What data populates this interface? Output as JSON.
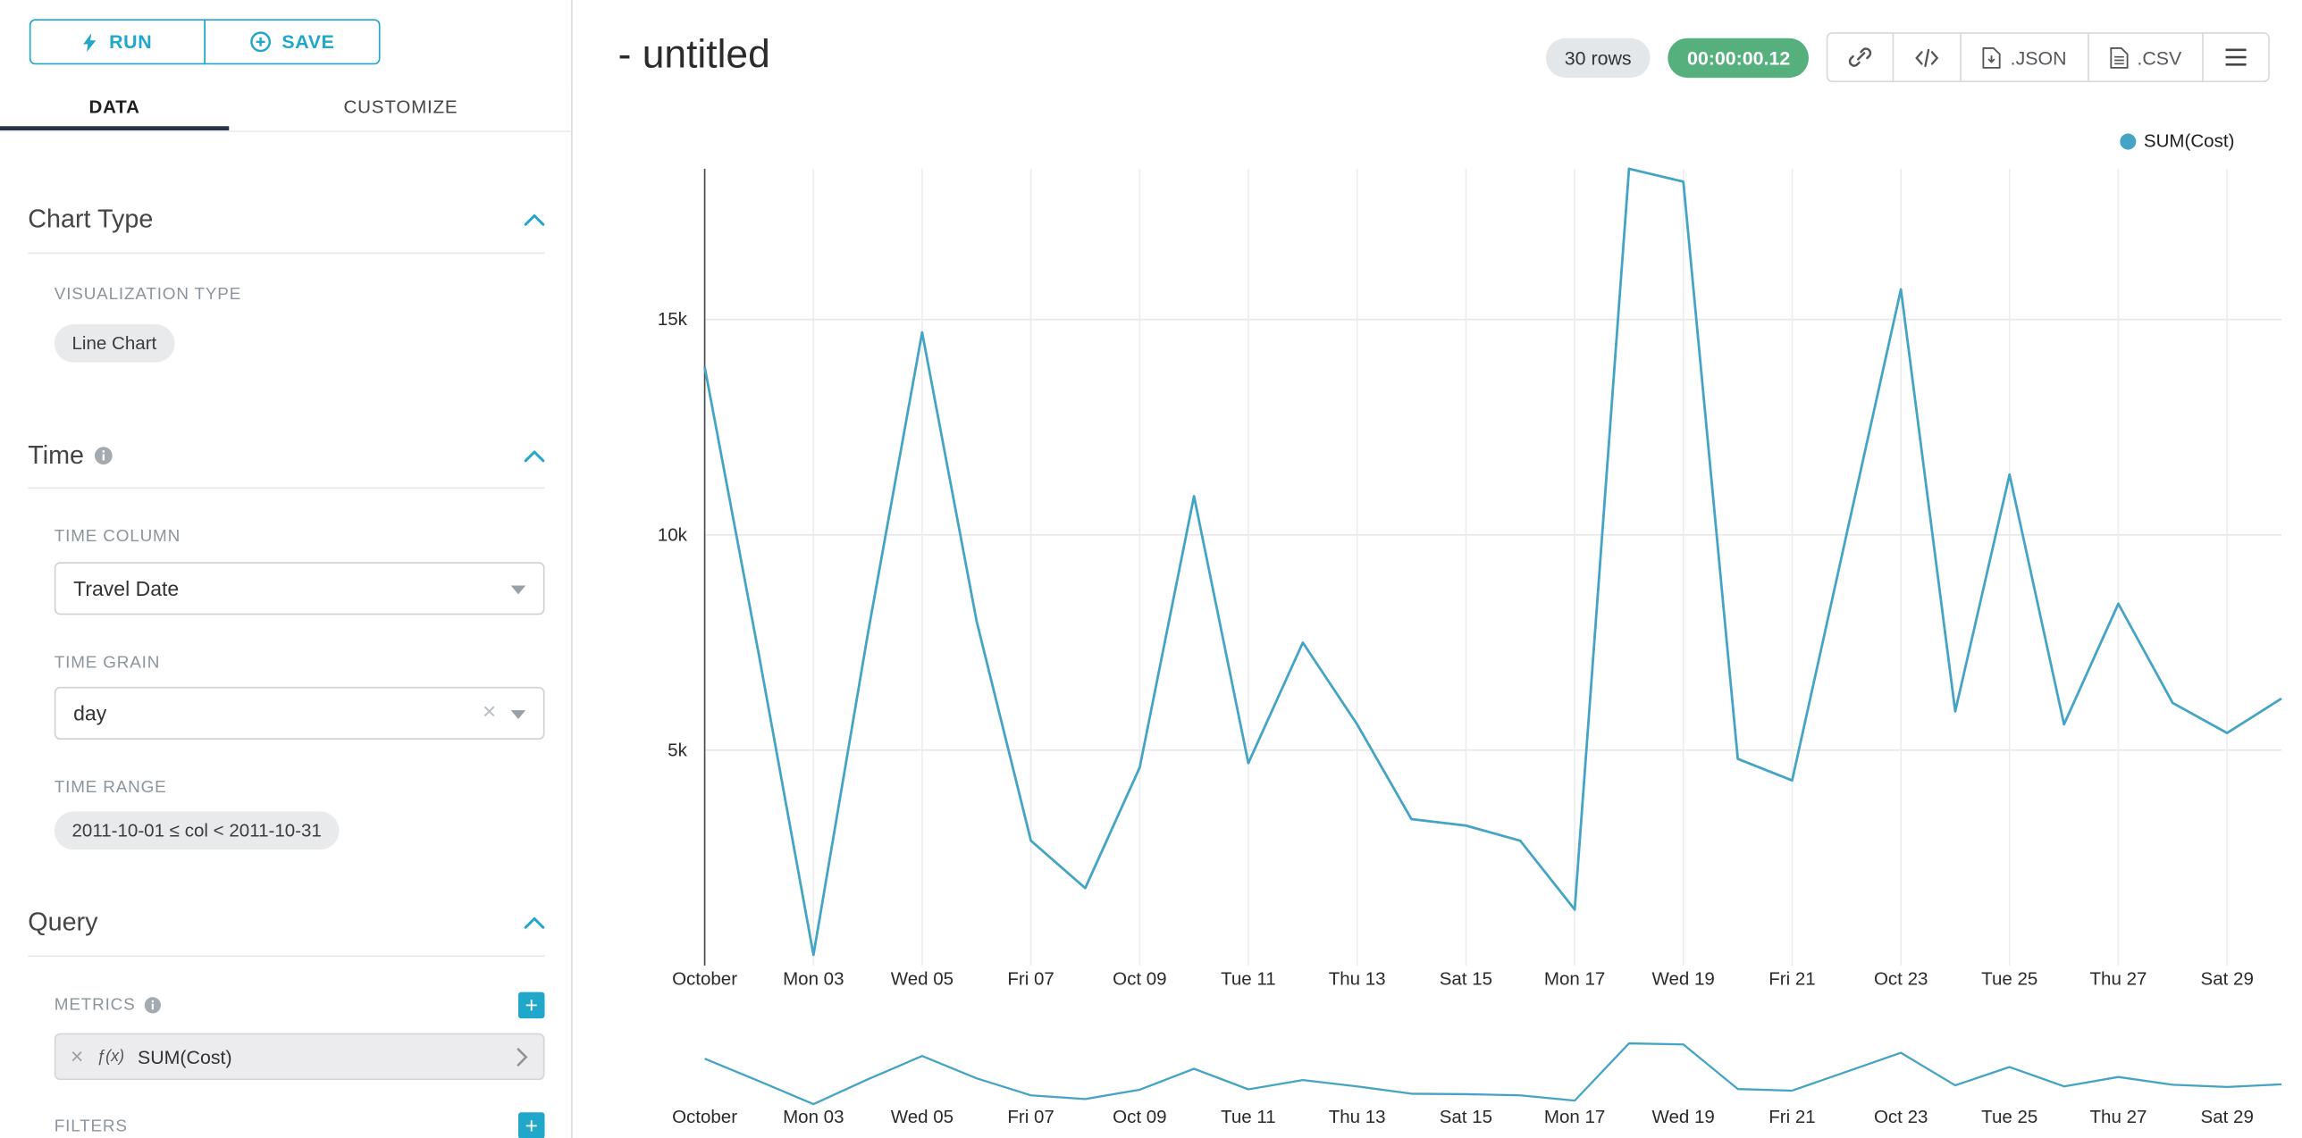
{
  "accent_color": "#20a7c9",
  "sidebar": {
    "run_button": {
      "label": "RUN",
      "icon": "lightning-bolt-icon"
    },
    "save_button": {
      "label": "SAVE",
      "icon": "plus-circle-icon"
    },
    "tabs": [
      {
        "label": "DATA",
        "active": true
      },
      {
        "label": "CUSTOMIZE",
        "active": false
      }
    ],
    "chart_type_section": {
      "title": "Chart Type",
      "visualization_type_label": "VISUALIZATION TYPE",
      "visualization_type_value": "Line Chart"
    },
    "time_section": {
      "title": "Time",
      "time_column_label": "TIME COLUMN",
      "time_column_value": "Travel Date",
      "time_grain_label": "TIME GRAIN",
      "time_grain_value": "day",
      "time_range_label": "TIME RANGE",
      "time_range_value": "2011-10-01 ≤ col < 2011-10-31"
    },
    "query_section": {
      "title": "Query",
      "metrics_label": "METRICS",
      "metric_function_badge": "ƒ(x)",
      "metric_value": "SUM(Cost)",
      "filters_label": "FILTERS"
    }
  },
  "header": {
    "title": "- untitled",
    "rows_badge": "30 rows",
    "timer_badge": "00:00:00.12",
    "timer_color": "#56b07e",
    "rows_badge_color": "#e4e7e9",
    "export_json_label": ".JSON",
    "export_csv_label": ".CSV",
    "icon_buttons": [
      "link-icon",
      "code-icon",
      "export-json",
      "export-csv",
      "menu-icon"
    ]
  },
  "legend": {
    "label": "SUM(Cost)",
    "color": "#45a4c5"
  },
  "chart_data": {
    "type": "line",
    "title": "",
    "xlabel": "",
    "ylabel": "",
    "legend_position": "top-right",
    "grid": true,
    "line_color": "#45a4c5",
    "x": [
      "2011-10-01",
      "2011-10-02",
      "2011-10-03",
      "2011-10-04",
      "2011-10-05",
      "2011-10-06",
      "2011-10-07",
      "2011-10-08",
      "2011-10-09",
      "2011-10-10",
      "2011-10-11",
      "2011-10-12",
      "2011-10-13",
      "2011-10-14",
      "2011-10-15",
      "2011-10-16",
      "2011-10-17",
      "2011-10-18",
      "2011-10-19",
      "2011-10-20",
      "2011-10-21",
      "2011-10-22",
      "2011-10-23",
      "2011-10-24",
      "2011-10-25",
      "2011-10-26",
      "2011-10-27",
      "2011-10-28",
      "2011-10-29",
      "2011-10-30"
    ],
    "series": [
      {
        "name": "SUM(Cost)",
        "values": [
          13900,
          7200,
          250,
          7700,
          14700,
          8000,
          2900,
          1800,
          4600,
          10900,
          4700,
          7500,
          5600,
          3400,
          3250,
          2900,
          1300,
          18500,
          18200,
          4800,
          4300,
          10000,
          15700,
          5900,
          11400,
          5600,
          8400,
          6100,
          5400,
          6200
        ]
      }
    ],
    "x_tick_labels": [
      "October",
      "Mon 03",
      "Wed 05",
      "Fri 07",
      "Oct 09",
      "Tue 11",
      "Thu 13",
      "Sat 15",
      "Mon 17",
      "Wed 19",
      "Fri 21",
      "Oct 23",
      "Tue 25",
      "Thu 27",
      "Sat 29"
    ],
    "x_tick_indices": [
      0,
      2,
      4,
      6,
      8,
      10,
      12,
      14,
      16,
      18,
      20,
      22,
      24,
      26,
      28
    ],
    "y_ticks": [
      {
        "value": 5000,
        "label": "5k"
      },
      {
        "value": 10000,
        "label": "10k"
      },
      {
        "value": 15000,
        "label": "15k"
      }
    ],
    "ylim": [
      0,
      18500
    ],
    "has_mini_chart": true
  }
}
